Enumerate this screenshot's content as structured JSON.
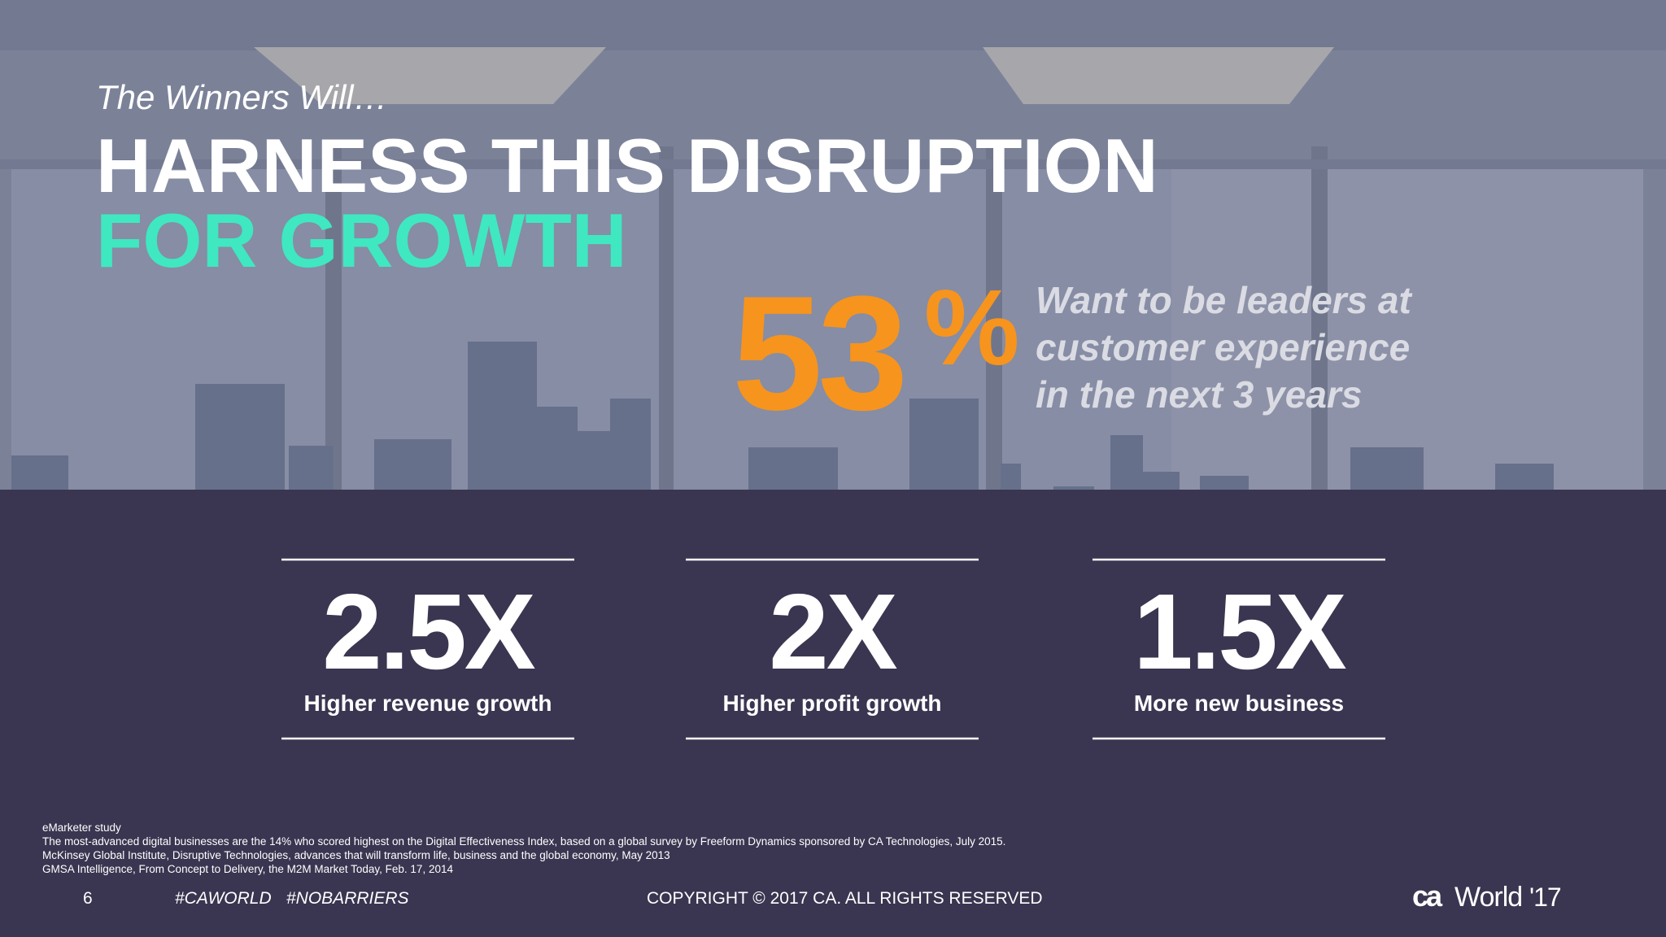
{
  "header": {
    "kicker": "The Winners Will…",
    "title_line1": "HARNESS THIS DISRUPTION",
    "title_line2": "FOR GROWTH"
  },
  "highlight": {
    "value": "53",
    "unit": "%",
    "lines": [
      "Want to be leaders at",
      "customer experience",
      "in the next 3 years"
    ]
  },
  "metrics": [
    {
      "value": "2.5X",
      "label": "Higher revenue growth"
    },
    {
      "value": "2X",
      "label": "Higher profit growth"
    },
    {
      "value": "1.5X",
      "label": "More new business"
    }
  ],
  "footnotes": [
    "eMarketer study",
    "The most-advanced digital businesses are the 14% who scored highest on the Digital Effectiveness Index, based on a global survey by Freeform Dynamics sponsored by CA Technologies, July 2015.",
    "McKinsey Global Institute, Disruptive Technologies,  advances that will transform life, business and the global economy, May 2013",
    "GMSA Intelligence, From Concept to Delivery, the M2M Market Today, Feb. 17, 2014"
  ],
  "footer": {
    "page": "6",
    "hashtags": [
      "#CAWORLD",
      "#NOBARRIERS"
    ],
    "copyright": "COPYRIGHT © 2017 CA. ALL RIGHTS RESERVED",
    "logo": {
      "brand": "ca",
      "name": "World",
      "edition": "'17"
    }
  }
}
